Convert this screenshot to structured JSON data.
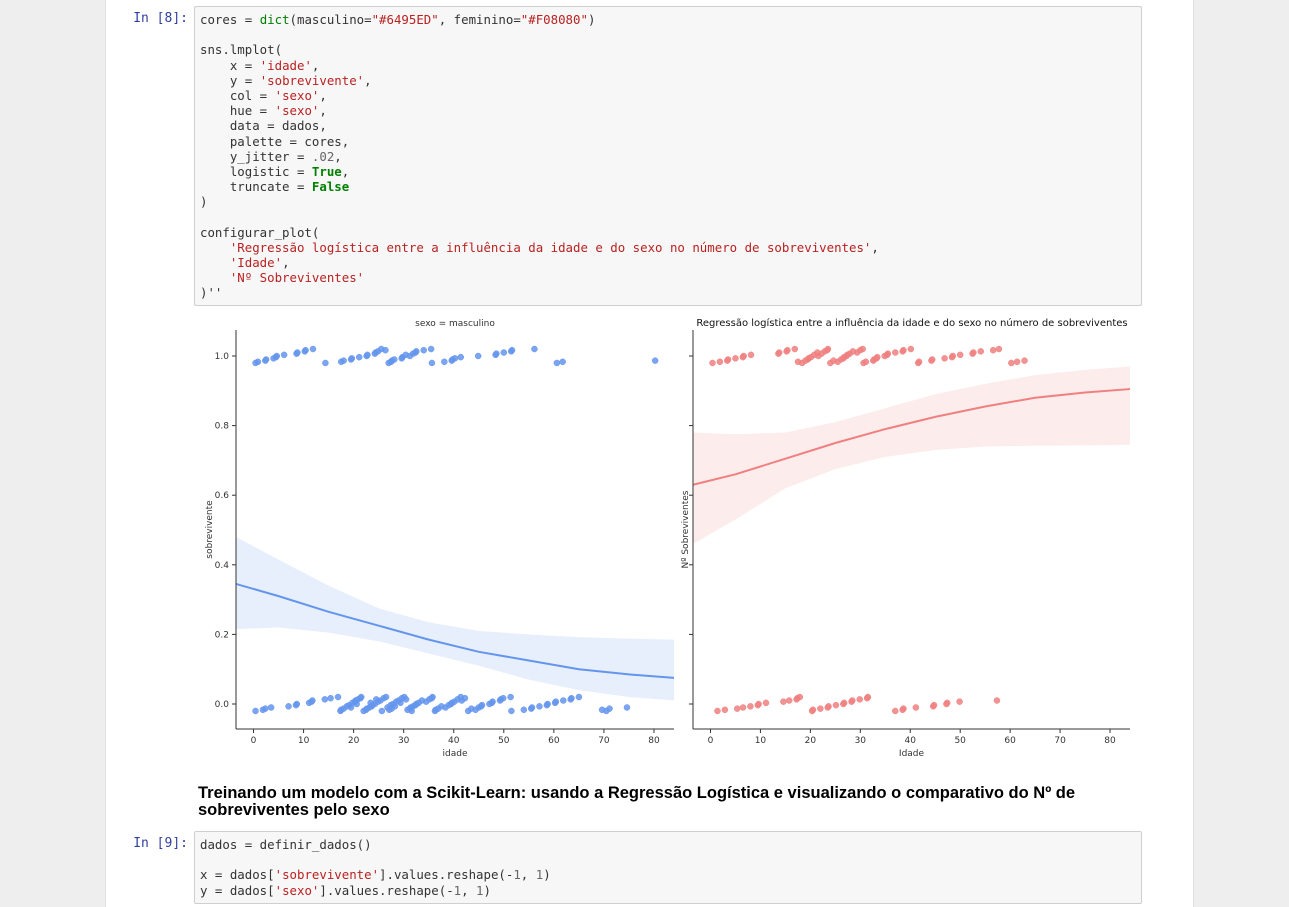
{
  "cells": {
    "cell8": {
      "prompt": "In [8]:",
      "lines": [
        [
          {
            "t": "cores = "
          },
          {
            "t": "dict",
            "c": "b"
          },
          {
            "t": "(masculino="
          },
          {
            "t": "\"#6495ED\"",
            "c": "s"
          },
          {
            "t": ", feminino="
          },
          {
            "t": "\"#F08080\"",
            "c": "s"
          },
          {
            "t": ")"
          }
        ],
        [],
        [
          {
            "t": "sns.lmplot("
          }
        ],
        [
          {
            "t": "    x = "
          },
          {
            "t": "'idade'",
            "c": "s"
          },
          {
            "t": ","
          }
        ],
        [
          {
            "t": "    y = "
          },
          {
            "t": "'sobrevivente'",
            "c": "s"
          },
          {
            "t": ","
          }
        ],
        [
          {
            "t": "    col = "
          },
          {
            "t": "'sexo'",
            "c": "s"
          },
          {
            "t": ","
          }
        ],
        [
          {
            "t": "    hue = "
          },
          {
            "t": "'sexo'",
            "c": "s"
          },
          {
            "t": ","
          }
        ],
        [
          {
            "t": "    data = dados,"
          }
        ],
        [
          {
            "t": "    palette = cores,"
          }
        ],
        [
          {
            "t": "    y_jitter = "
          },
          {
            "t": ".02",
            "c": "n"
          },
          {
            "t": ","
          }
        ],
        [
          {
            "t": "    logistic = "
          },
          {
            "t": "True",
            "c": "k"
          },
          {
            "t": ","
          }
        ],
        [
          {
            "t": "    truncate = "
          },
          {
            "t": "False",
            "c": "k"
          }
        ],
        [
          {
            "t": ")"
          }
        ],
        [],
        [
          {
            "t": "configurar_plot("
          }
        ],
        [
          {
            "t": "    "
          },
          {
            "t": "'Regressão logística entre a influência da idade e do sexo no número de sobreviventes'",
            "c": "s"
          },
          {
            "t": ","
          }
        ],
        [
          {
            "t": "    "
          },
          {
            "t": "'Idade'",
            "c": "s"
          },
          {
            "t": ","
          }
        ],
        [
          {
            "t": "    "
          },
          {
            "t": "'Nº Sobreviventes'",
            "c": "s"
          }
        ],
        [
          {
            "t": ")''",
            "c": "p"
          }
        ]
      ]
    },
    "cell9": {
      "prompt": "In [9]:",
      "lines": [
        [
          {
            "t": "dados = definir_dados()"
          }
        ],
        [],
        [
          {
            "t": "x = dados["
          },
          {
            "t": "'sobrevivente'",
            "c": "s"
          },
          {
            "t": "].values.reshape(-"
          },
          {
            "t": "1",
            "c": "n"
          },
          {
            "t": ", "
          },
          {
            "t": "1",
            "c": "n"
          },
          {
            "t": ")"
          }
        ],
        [
          {
            "t": "y = dados["
          },
          {
            "t": "'sexo'",
            "c": "s"
          },
          {
            "t": "].values.reshape(-"
          },
          {
            "t": "1",
            "c": "n"
          },
          {
            "t": ", "
          },
          {
            "t": "1",
            "c": "n"
          },
          {
            "t": ")"
          }
        ]
      ]
    }
  },
  "markdown": {
    "heading": "Treinando um modelo com a Scikit-Learn: usando a Regressão Logística e visualizando o comparativo do Nº de sobreviventes pelo sexo"
  },
  "chart_data": [
    {
      "type": "scatter",
      "title": "sexo = masculino",
      "xlabel": "idade",
      "ylabel": "sobrevivente",
      "xlim": [
        -3.5,
        84
      ],
      "ylim": [
        -0.07,
        1.07
      ],
      "xticks": [
        0,
        10,
        20,
        30,
        40,
        50,
        60,
        70,
        80
      ],
      "yticks": [
        0.0,
        0.2,
        0.4,
        0.6,
        0.8,
        1.0
      ],
      "ytick_labels": [
        "0.0",
        "0.2",
        "0.4",
        "0.6",
        "0.8",
        "1.0"
      ],
      "color": "#6495ED",
      "survived_ages": [
        1,
        1,
        2,
        3,
        4,
        4,
        5,
        6,
        8,
        9,
        10,
        11,
        12,
        14,
        18,
        18,
        19,
        20,
        21,
        22,
        23,
        24,
        25,
        25,
        26,
        26,
        27,
        27,
        28,
        28,
        29,
        30,
        31,
        31,
        32,
        32,
        33,
        34,
        35,
        36,
        38,
        39,
        40,
        40,
        42,
        45,
        48,
        49,
        50,
        51,
        52,
        56,
        60,
        62,
        80
      ],
      "died_ages": [
        1,
        2,
        2,
        4,
        7,
        8,
        9,
        11,
        11,
        12,
        14,
        16,
        17,
        17,
        18,
        18,
        19,
        19,
        19,
        20,
        20,
        20,
        21,
        21,
        21,
        22,
        22,
        22,
        23,
        23,
        23,
        24,
        24,
        24,
        25,
        25,
        25,
        26,
        26,
        26,
        27,
        27,
        27,
        28,
        28,
        28,
        29,
        29,
        29,
        30,
        30,
        30,
        31,
        31,
        31,
        32,
        32,
        32,
        33,
        33,
        34,
        34,
        35,
        35,
        36,
        36,
        37,
        37,
        38,
        38,
        39,
        39,
        40,
        40,
        41,
        41,
        42,
        42,
        43,
        44,
        44,
        45,
        45,
        46,
        47,
        47,
        48,
        49,
        50,
        50,
        51,
        52,
        54,
        55,
        56,
        57,
        58,
        59,
        60,
        61,
        62,
        63,
        64,
        65,
        70,
        70,
        71,
        74
      ],
      "fit_line": [
        [
          -3.5,
          0.345
        ],
        [
          5,
          0.31
        ],
        [
          15,
          0.265
        ],
        [
          25,
          0.225
        ],
        [
          35,
          0.185
        ],
        [
          45,
          0.15
        ],
        [
          55,
          0.125
        ],
        [
          65,
          0.1
        ],
        [
          75,
          0.085
        ],
        [
          84,
          0.075
        ]
      ],
      "ci_upper": [
        [
          -3.5,
          0.48
        ],
        [
          5,
          0.415
        ],
        [
          15,
          0.34
        ],
        [
          25,
          0.275
        ],
        [
          35,
          0.235
        ],
        [
          45,
          0.21
        ],
        [
          55,
          0.2
        ],
        [
          65,
          0.192
        ],
        [
          75,
          0.188
        ],
        [
          84,
          0.185
        ]
      ],
      "ci_lower": [
        [
          -3.5,
          0.215
        ],
        [
          5,
          0.22
        ],
        [
          15,
          0.205
        ],
        [
          25,
          0.18
        ],
        [
          35,
          0.145
        ],
        [
          45,
          0.11
        ],
        [
          55,
          0.07
        ],
        [
          65,
          0.04
        ],
        [
          75,
          0.02
        ],
        [
          84,
          0.01
        ]
      ]
    },
    {
      "type": "scatter",
      "title": "Regressão logística entre a influência da idade e do sexo no número de sobreviventes",
      "xlabel": "Idade",
      "ylabel": "Nº Sobreviventes",
      "xlim": [
        -3.5,
        84
      ],
      "ylim": [
        -0.07,
        1.07
      ],
      "xticks": [
        0,
        10,
        20,
        30,
        40,
        50,
        60,
        70,
        80
      ],
      "color": "#F08080",
      "survived_ages": [
        1,
        2,
        3,
        4,
        5,
        6,
        7,
        8,
        13,
        14,
        15,
        16,
        17,
        18,
        18,
        19,
        19,
        20,
        20,
        21,
        21,
        22,
        22,
        23,
        23,
        24,
        24,
        25,
        25,
        26,
        26,
        27,
        27,
        28,
        28,
        29,
        29,
        30,
        30,
        31,
        31,
        32,
        33,
        33,
        34,
        35,
        35,
        36,
        37,
        38,
        39,
        40,
        41,
        42,
        44,
        45,
        47,
        48,
        49,
        50,
        52,
        53,
        54,
        56,
        58,
        60,
        62,
        63
      ],
      "died_ages": [
        2,
        3,
        5,
        7,
        8,
        9,
        10,
        11,
        14,
        16,
        17,
        18,
        18,
        20,
        21,
        22,
        23,
        24,
        25,
        26,
        27,
        28,
        29,
        30,
        31,
        32,
        37,
        38,
        39,
        41,
        44,
        45,
        47,
        48,
        50,
        57
      ],
      "fit_line": [
        [
          -3.5,
          0.63
        ],
        [
          5,
          0.66
        ],
        [
          15,
          0.705
        ],
        [
          25,
          0.75
        ],
        [
          35,
          0.79
        ],
        [
          45,
          0.825
        ],
        [
          55,
          0.855
        ],
        [
          65,
          0.88
        ],
        [
          75,
          0.895
        ],
        [
          84,
          0.905
        ]
      ],
      "ci_upper": [
        [
          -3.5,
          0.78
        ],
        [
          5,
          0.775
        ],
        [
          15,
          0.78
        ],
        [
          25,
          0.81
        ],
        [
          35,
          0.85
        ],
        [
          45,
          0.89
        ],
        [
          55,
          0.92
        ],
        [
          65,
          0.945
        ],
        [
          75,
          0.96
        ],
        [
          84,
          0.97
        ]
      ],
      "ci_lower": [
        [
          -3.5,
          0.46
        ],
        [
          5,
          0.53
        ],
        [
          15,
          0.62
        ],
        [
          25,
          0.675
        ],
        [
          35,
          0.71
        ],
        [
          45,
          0.73
        ],
        [
          55,
          0.74
        ],
        [
          65,
          0.742
        ],
        [
          75,
          0.743
        ],
        [
          84,
          0.745
        ]
      ]
    }
  ]
}
